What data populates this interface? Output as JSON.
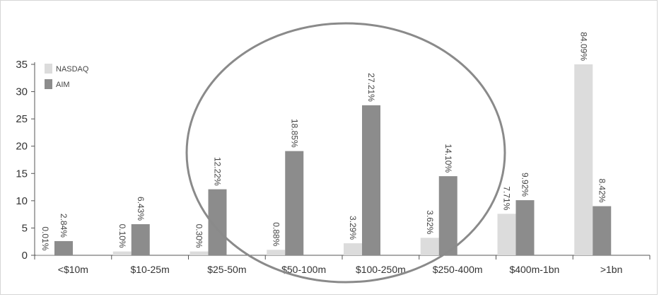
{
  "chart_data": {
    "type": "bar",
    "categories": [
      "<$10m",
      "$10-25m",
      "$25-50m",
      "$50-100m",
      "$100-250m",
      "$250-400m",
      "$400m-1bn",
      ">1bn"
    ],
    "series": [
      {
        "name": "NASDAQ",
        "values": [
          0.2,
          0.7,
          0.7,
          1.0,
          2.2,
          3.2,
          7.6,
          35.0
        ],
        "labels": [
          "0.01%",
          "0.10%",
          "0.30%",
          "0.88%",
          "3.29%",
          "3.62%",
          "7.71%",
          "84.09%"
        ],
        "color": "#dcdcdc"
      },
      {
        "name": "AIM",
        "values": [
          2.6,
          5.7,
          12.1,
          19.1,
          27.5,
          14.5,
          10.1,
          9.0
        ],
        "labels": [
          "2.84%",
          "6.43%",
          "12.22%",
          "18.85%",
          "27.21%",
          "14.10%",
          "9.92%",
          "8.42%"
        ],
        "color": "#8c8c8c"
      }
    ],
    "yticks": [
      0,
      5,
      10,
      15,
      20,
      25,
      30,
      35
    ],
    "ylim": [
      0,
      35
    ],
    "grid": false,
    "legend": "top-left",
    "annotation": "ellipse highlighting $25-50m to $250-400m"
  }
}
